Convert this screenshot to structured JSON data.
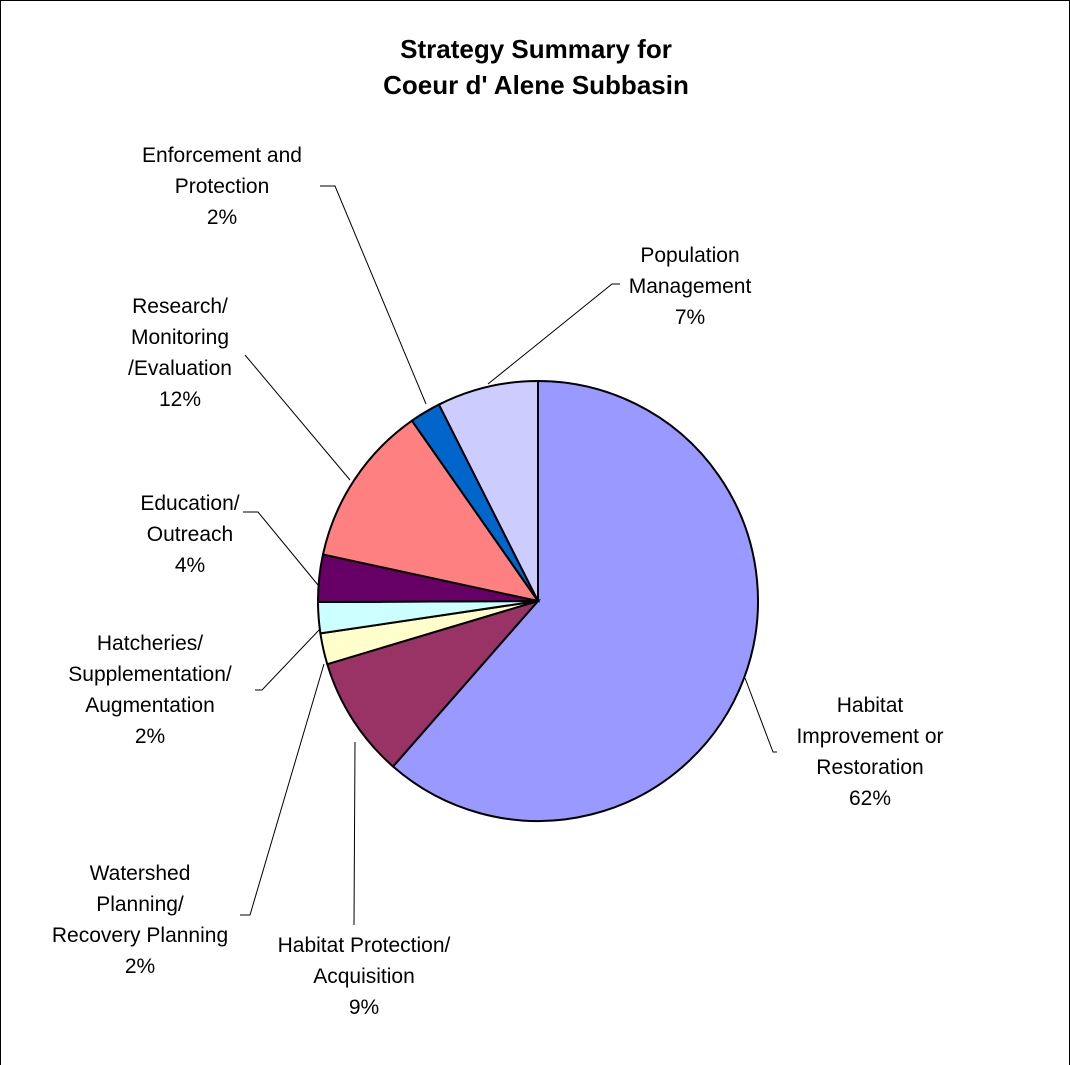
{
  "chart_data": {
    "type": "pie",
    "title": [
      "Strategy Summary for",
      "Coeur d' Alene  Subbasin"
    ],
    "slices": [
      {
        "label": [
          "Habitat",
          "Improvement or",
          "Restoration"
        ],
        "value_label": "62%",
        "value": 62,
        "color": "#9999ff"
      },
      {
        "label": [
          "Habitat Protection/",
          "Acquisition"
        ],
        "value_label": "9%",
        "value": 9,
        "color": "#993366"
      },
      {
        "label": [
          "Watershed",
          "Planning/",
          "Recovery Planning"
        ],
        "value_label": "2%",
        "value": 2.3,
        "color": "#ffffcc"
      },
      {
        "label": [
          "Hatcheries/",
          "Supplementation/",
          "Augmentation"
        ],
        "value_label": "2%",
        "value": 2.3,
        "color": "#ccffff"
      },
      {
        "label": [
          "Education/",
          "Outreach"
        ],
        "value_label": "4%",
        "value": 3.5,
        "color": "#660066"
      },
      {
        "label": [
          "Research/",
          "Monitoring",
          "/Evaluation"
        ],
        "value_label": "12%",
        "value": 12,
        "color": "#ff8080"
      },
      {
        "label": [
          "Enforcement and",
          "Protection"
        ],
        "value_label": "2%",
        "value": 2.3,
        "color": "#0066cc"
      },
      {
        "label": [
          "Population",
          "Management"
        ],
        "value_label": "7%",
        "value": 7.5,
        "color": "#ccccff"
      }
    ],
    "start_angle_deg": 0,
    "direction": "clockwise"
  }
}
